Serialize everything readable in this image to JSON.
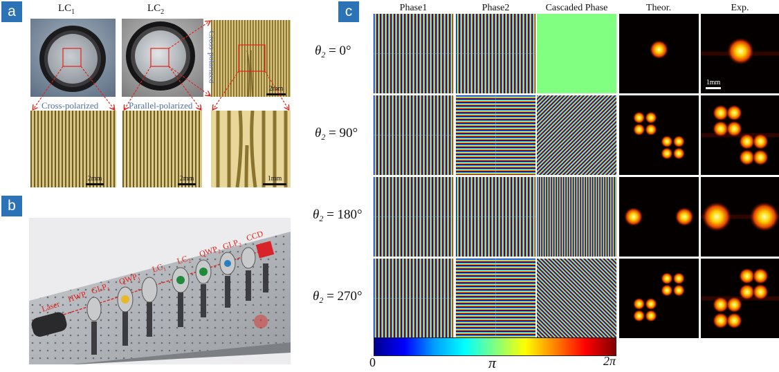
{
  "panel_a": {
    "tag": "a",
    "lc1_label": "LC",
    "lc1_sub": "1",
    "lc2_label": "LC",
    "lc2_sub": "2",
    "cross_polarized_vertical": "Cross-polarized",
    "cross_polarized": "Cross-polarized",
    "parallel_polarized": "Parallel-polarized",
    "scale_2mm_a": "2mm",
    "scale_2mm_b": "2mm",
    "scale_2mm_c": "2mm",
    "scale_1mm": "1mm",
    "arrow_color": "#e2231a"
  },
  "panel_b": {
    "tag": "b",
    "beam_labels": [
      "Laser",
      "HWP",
      "GLP",
      "QWP",
      "LC",
      "LC",
      "QWP",
      "GLP",
      "CCD"
    ],
    "beam_subscripts": [
      "",
      "",
      "1",
      "1",
      "1",
      "2",
      "2",
      "2",
      ""
    ],
    "beam_color": "#e2231a"
  },
  "panel_c": {
    "tag": "c",
    "columns": [
      "Phase1",
      "Phase2",
      "Cascaded Phase",
      "Theor.",
      "Exp."
    ],
    "rows": [
      {
        "theta": "θ",
        "sub": "2",
        "value": " = 0°"
      },
      {
        "theta": "θ",
        "sub": "2",
        "value": " = 90°"
      },
      {
        "theta": "θ",
        "sub": "2",
        "value": " = 180°"
      },
      {
        "theta": "θ",
        "sub": "2",
        "value": " = 270°"
      }
    ],
    "scale_exp": "1mm",
    "colorbar": {
      "min_label": "0",
      "mid_label": "π",
      "max_label": "2π",
      "colors": [
        "#00008f",
        "#0000ff",
        "#00a0ff",
        "#00ffff",
        "#80ff80",
        "#ffff00",
        "#ff8000",
        "#ff0000",
        "#800000"
      ]
    },
    "cascaded_uniform_color": "#80ff80"
  }
}
